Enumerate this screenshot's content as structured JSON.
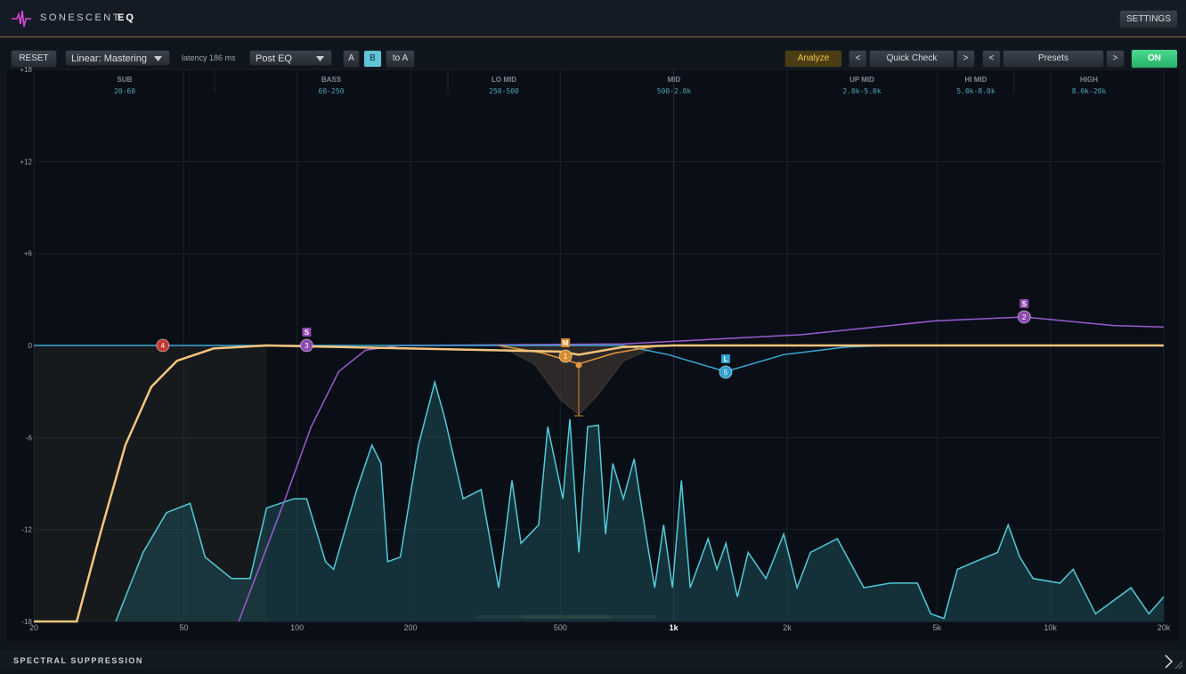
{
  "header": {
    "brand": "SONESCENT",
    "product": "EQ",
    "settings": "SETTINGS"
  },
  "toolbar": {
    "reset": "RESET",
    "mode": "Linear: Mastering",
    "latency": "latency 186 ms",
    "position": "Post EQ",
    "a": "A",
    "b": "B",
    "to_a": "to A",
    "analyze": "Analyze",
    "qc_prev": "<",
    "quick_check": "Quick Check",
    "qc_next": ">",
    "pr_prev": "<",
    "presets": "Presets",
    "pr_next": ">",
    "on": "ON"
  },
  "bands": [
    {
      "name": "SUB",
      "range": "20-60"
    },
    {
      "name": "BASS",
      "range": "60-250"
    },
    {
      "name": "LO MID",
      "range": "250-500"
    },
    {
      "name": "MID",
      "range": "500-2.0k"
    },
    {
      "name": "UP MID",
      "range": "2.0k-5.0k"
    },
    {
      "name": "HI MID",
      "range": "5.0k-8.0k"
    },
    {
      "name": "HIGH",
      "range": "8.0k-20k"
    }
  ],
  "chart_data": {
    "type": "line",
    "log_x": true,
    "grid": true,
    "xlim": [
      20,
      20000
    ],
    "ylim": [
      -18,
      18
    ],
    "xticks": [
      20,
      50,
      100,
      200,
      500,
      {
        "value": 1000,
        "label": "1k"
      },
      {
        "value": 2000,
        "label": "2k"
      },
      {
        "value": 5000,
        "label": "5k"
      },
      {
        "value": 10000,
        "label": "10k"
      },
      {
        "value": 20000,
        "label": "20k"
      }
    ],
    "yticks": [
      {
        "value": 18,
        "label": "+18"
      },
      {
        "value": 12,
        "label": "+12"
      },
      {
        "value": 6,
        "label": "+6"
      },
      0,
      -6,
      -12,
      -18
    ],
    "series": [
      {
        "color": "#52cbd8",
        "fill": "#1d4f57",
        "x": [
          33,
          39,
          45,
          52,
          57,
          67,
          75,
          83,
          98,
          106,
          119,
          125,
          144,
          158,
          167,
          174,
          188,
          210,
          232,
          247,
          276,
          308,
          343,
          372,
          393,
          438,
          463,
          508,
          530,
          560,
          591,
          631,
          659,
          689,
          735,
          785,
          843,
          890,
          940,
          992,
          1048,
          1106,
          1234,
          1302,
          1376,
          1476,
          1576,
          1757,
          1959,
          2126,
          2307,
          2718,
          3198,
          3766,
          4436,
          4812,
          5220,
          5666,
          6316,
          7240,
          7728,
          8296,
          9000,
          10600,
          11498,
          13180,
          16380,
          18260,
          20000
        ],
        "values": [
          -18,
          -13.5,
          -10.9,
          -10.3,
          -13.8,
          -15.2,
          -15.2,
          -10.6,
          -10,
          -10,
          -14.1,
          -14.6,
          -9.4,
          -6.5,
          -7.7,
          -14.1,
          -13.8,
          -6.5,
          -2.4,
          -4.8,
          -10,
          -9.4,
          -15.8,
          -8.8,
          -12.9,
          -11.7,
          -5.3,
          -10,
          -4.8,
          -13.5,
          -5.3,
          -5.2,
          -12.3,
          -7.7,
          -10,
          -7.4,
          -12.3,
          -15.8,
          -11.7,
          -15.8,
          -8.8,
          -15.8,
          -12.6,
          -14.6,
          -12.9,
          -16.4,
          -13.5,
          -15.2,
          -12.3,
          -15.8,
          -13.5,
          -12.6,
          -15.8,
          -15.5,
          -15.5,
          -17.5,
          -17.8,
          -14.6,
          -14.1,
          -13.5,
          -11.7,
          -13.8,
          -15.2,
          -15.5,
          -14.6,
          -17.5,
          -15.8,
          -17.5,
          -16.4
        ]
      },
      {
        "color": "#3a3530",
        "x": [
          343,
          427,
          500,
          560,
          625,
          735,
          914
        ],
        "values": [
          0,
          -1.2,
          -3.5,
          -4.5,
          -3.3,
          -1,
          0
        ]
      },
      {
        "color": "#9b5bd0",
        "x": [
          70,
          79,
          93,
          109,
          129,
          152,
          188,
          735,
          2183,
          4946,
          8520,
          14700,
          20000
        ],
        "values": [
          -18,
          -14.6,
          -10,
          -5.3,
          -1.7,
          -0.3,
          0,
          0.1,
          0.7,
          1.6,
          1.86,
          1.3,
          1.2
        ]
      },
      {
        "color": "#3aa8d8",
        "x": [
          20,
          735,
          966,
          1374,
          1959,
          2869,
          3766,
          20000
        ],
        "values": [
          0,
          0,
          -0.6,
          -1.7,
          -0.6,
          -0.1,
          0,
          0
        ]
      },
      {
        "color": "#e2963c",
        "x": [
          343,
          450,
          560,
          696,
          914
        ],
        "values": [
          0,
          -0.5,
          -1.2,
          -0.5,
          0
        ]
      },
      {
        "color": "#f6c57e",
        "x": [
          20,
          26,
          30,
          35,
          41,
          48,
          60,
          83,
          500,
          560,
          735,
          1000,
          20000
        ],
        "values": [
          -18,
          -18,
          -12.3,
          -6.5,
          -2.7,
          -1,
          -0.2,
          0,
          -0.4,
          -0.6,
          -0.1,
          0,
          0
        ]
      }
    ],
    "nodes": [
      {
        "label": "4",
        "x": 44,
        "value": 0,
        "color": "#c23a2e"
      },
      {
        "label": "3",
        "tag": "S",
        "x": 106,
        "value": 0,
        "color": "#8e48b0"
      },
      {
        "label": "1",
        "tag": "M",
        "x": 516,
        "value": -0.7,
        "color": "#d88a2c"
      },
      {
        "label": "5",
        "tag": "L",
        "x": 1374,
        "value": -1.74,
        "color": "#2e9fd0"
      },
      {
        "label": "2",
        "tag": "S",
        "x": 8520,
        "value": 1.86,
        "color": "#8e48b0"
      }
    ]
  },
  "footer": {
    "title": "SPECTRAL SUPPRESSION"
  }
}
